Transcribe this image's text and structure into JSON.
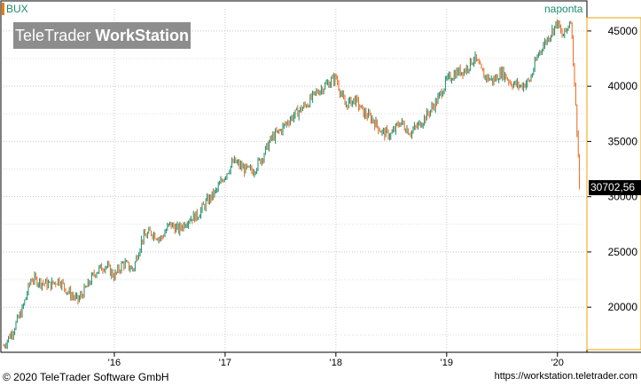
{
  "header": {
    "symbol": "BUX",
    "interval": "naponta",
    "last_price": "30702,56"
  },
  "logo": {
    "part1": "TeleTrader ",
    "part2": "WorkStation"
  },
  "footer": {
    "copyright": "© 2020 TeleTrader Software GmbH",
    "url": "https://workstation.teletrader.com"
  },
  "colors": {
    "up": "#1a8a6a",
    "down": "#e8661c",
    "grid": "#c8c8c8",
    "accent": "#f0a000"
  },
  "chart_data": {
    "type": "line",
    "title": "BUX",
    "xlabel": "",
    "ylabel": "",
    "x_ticks": [
      "'16",
      "'17",
      "'18",
      "'19",
      "'20"
    ],
    "x_tick_years": [
      2016,
      2017,
      2018,
      2019,
      2020
    ],
    "y_ticks": [
      20000,
      25000,
      30000,
      35000,
      40000,
      45000
    ],
    "y_tick_labels": [
      "20000",
      "25000",
      "30000",
      "35000",
      "40000",
      "45000"
    ],
    "ylim": [
      16000,
      47000
    ],
    "xlim": [
      2015.0,
      2020.25
    ],
    "last_value": 30702.56,
    "series": [
      {
        "values": [
          [
            2015.0,
            16500
          ],
          [
            2015.08,
            17800
          ],
          [
            2015.17,
            19800
          ],
          [
            2015.25,
            22600
          ],
          [
            2015.33,
            22300
          ],
          [
            2015.42,
            22000
          ],
          [
            2015.5,
            22500
          ],
          [
            2015.58,
            21400
          ],
          [
            2015.67,
            20600
          ],
          [
            2015.75,
            21800
          ],
          [
            2015.83,
            23200
          ],
          [
            2015.92,
            23800
          ],
          [
            2016.0,
            22800
          ],
          [
            2016.08,
            24000
          ],
          [
            2016.17,
            23400
          ],
          [
            2016.25,
            26200
          ],
          [
            2016.33,
            26800
          ],
          [
            2016.42,
            26200
          ],
          [
            2016.5,
            27500
          ],
          [
            2016.58,
            27000
          ],
          [
            2016.67,
            28000
          ],
          [
            2016.75,
            28300
          ],
          [
            2016.83,
            29500
          ],
          [
            2016.92,
            30500
          ],
          [
            2017.0,
            32000
          ],
          [
            2017.08,
            33200
          ],
          [
            2017.17,
            32500
          ],
          [
            2017.25,
            32300
          ],
          [
            2017.33,
            33500
          ],
          [
            2017.42,
            35300
          ],
          [
            2017.5,
            36000
          ],
          [
            2017.58,
            37000
          ],
          [
            2017.67,
            37800
          ],
          [
            2017.75,
            38500
          ],
          [
            2017.83,
            39500
          ],
          [
            2017.92,
            40200
          ],
          [
            2018.0,
            40800
          ],
          [
            2018.08,
            38300
          ],
          [
            2018.17,
            38800
          ],
          [
            2018.25,
            37600
          ],
          [
            2018.33,
            37000
          ],
          [
            2018.42,
            35800
          ],
          [
            2018.5,
            35600
          ],
          [
            2018.58,
            36800
          ],
          [
            2018.67,
            35800
          ],
          [
            2018.75,
            36500
          ],
          [
            2018.83,
            37500
          ],
          [
            2018.92,
            38800
          ],
          [
            2019.0,
            40500
          ],
          [
            2019.08,
            41200
          ],
          [
            2019.17,
            41500
          ],
          [
            2019.25,
            42600
          ],
          [
            2019.33,
            41000
          ],
          [
            2019.42,
            40500
          ],
          [
            2019.5,
            41300
          ],
          [
            2019.58,
            40300
          ],
          [
            2019.67,
            40000
          ],
          [
            2019.75,
            40500
          ],
          [
            2019.83,
            43000
          ],
          [
            2019.92,
            44500
          ],
          [
            2020.0,
            45800
          ],
          [
            2020.04,
            44500
          ],
          [
            2020.08,
            45000
          ],
          [
            2020.12,
            46200
          ],
          [
            2020.14,
            43000
          ],
          [
            2020.16,
            39000
          ],
          [
            2020.18,
            35500
          ],
          [
            2020.2,
            30702
          ]
        ]
      }
    ]
  }
}
